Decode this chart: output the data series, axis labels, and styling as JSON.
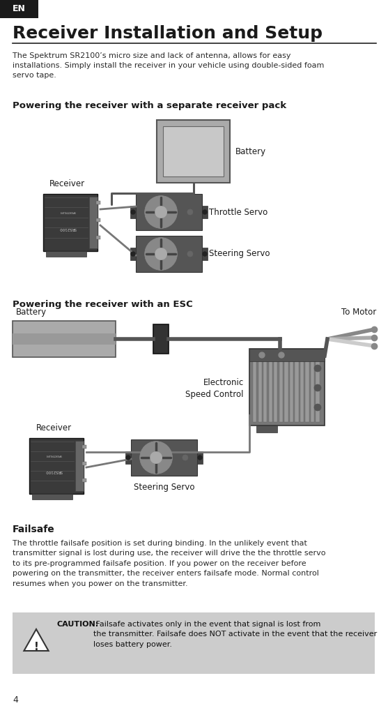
{
  "page_num": "4",
  "en_label": "EN",
  "title": "Receiver Installation and Setup",
  "intro_text": "The Spektrum SR2100’s micro size and lack of antenna, allows for easy\ninstallations. Simply install the receiver in your vehicle using double-sided foam\nservo tape.",
  "section1_title": "Powering the receiver with a separate receiver pack",
  "section2_title": "Powering the receiver with an ESC",
  "failsafe_title": "Failsafe",
  "failsafe_text": "The throttle failsafe position is set during binding. In the unlikely event that\ntransmitter signal is lost during use, the receiver will drive the the throttle servo\nto its pre-programmed failsafe position. If you power on the receiver before\npowering on the transmitter, the receiver enters failsafe mode. Normal control\nresumes when you power on the transmitter.",
  "caution_label": "CAUTION:",
  "caution_text": " Failsafe activates only in the event that signal is lost from\nthe transmitter. Failsafe does NOT activate in the event that the receiver\nloses battery power.",
  "bg_color": "#ffffff",
  "en_bg": "#1a1a1a",
  "en_fg": "#ffffff",
  "title_color": "#1a1a1a",
  "text_color": "#2a2a2a",
  "section_title_color": "#1a1a1a",
  "caution_bg": "#cccccc",
  "line_color": "#222222",
  "wire_color": "#555555",
  "wire_color2": "#777777",
  "rx_body": "#3a3a3a",
  "rx_edge": "#111111",
  "servo_body": "#555555",
  "servo_arm": "#888888",
  "servo_center": "#aaaaaa",
  "bat1_fill": "#aaaaaa",
  "bat1_inner": "#c8c8c8",
  "bat2_fill": "#aaaaaa",
  "esc_body": "#888888",
  "esc_fin": "#999999",
  "esc_dark": "#555555"
}
